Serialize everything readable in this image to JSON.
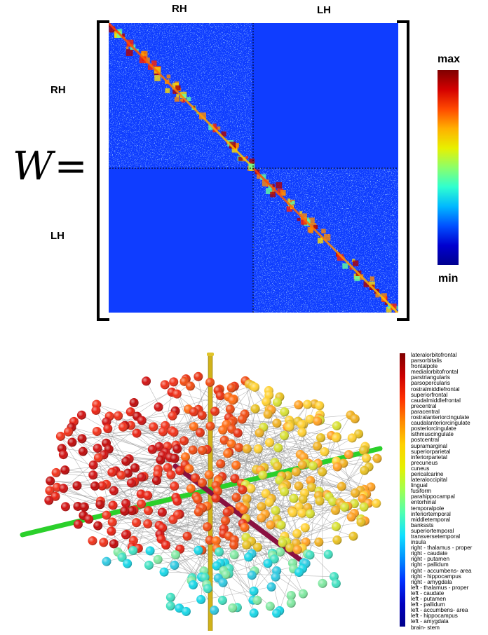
{
  "matrix_panel": {
    "symbol": "W",
    "equals": "=",
    "col_labels": [
      "RH",
      "LH"
    ],
    "row_labels": [
      "RH",
      "LH"
    ],
    "colorbar": {
      "max_label": "max",
      "min_label": "min"
    }
  },
  "network_legend": {
    "regions": [
      "lateralorbitofrontal",
      "parsorbitalis",
      "frontalpole",
      "medialorbitofrontal",
      "parstriangularis",
      "parsopercularis",
      "rostralmiddlefrontal",
      "superiorfrontal",
      "caudalmiddlefrontal",
      "precentral",
      "paracentral",
      "rostralanteriorcingulate",
      "caudalanteriorcingulate",
      "posteriorcingulate",
      "isthmuscingulate",
      "postcentral",
      "supramarginal",
      "superiorparietal",
      "inferiorparietal",
      "precuneus",
      "cuneus",
      "pericalcarine",
      "lateraloccipital",
      "lingual",
      "fusiform",
      "parahippocampal",
      "entorhinal",
      "temporalpole",
      "inferiortemporal",
      "middletemporal",
      "bankssts",
      "superiortemporal",
      "transversetemporal",
      "insula",
      "right - thalamus - proper",
      "right - caudate",
      "right - putamen",
      "right - pallidum",
      "right - accumbens- area",
      "right - hippocampus",
      "right - amygdala",
      "left - thalamus - proper",
      "left - caudate",
      "left - putamen",
      "left - pallidum",
      "left - accumbens- area",
      "left - hippocampus",
      "left - amygdala",
      "brain- stem"
    ]
  }
}
